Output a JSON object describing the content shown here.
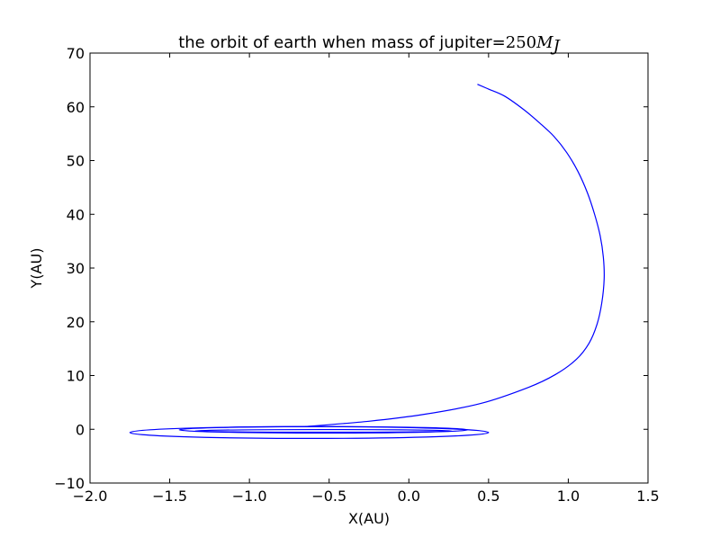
{
  "chart_data": {
    "type": "line",
    "title": "the orbit of earth when mass of jupiter=",
    "title_math": "250",
    "title_math_var": "M",
    "title_math_sub": "J",
    "xlabel": "X(AU)",
    "ylabel": "Y(AU)",
    "xlim": [
      -2.0,
      1.5
    ],
    "ylim": [
      -10,
      70
    ],
    "xticks": [
      -2.0,
      -1.5,
      -1.0,
      -0.5,
      0.0,
      0.5,
      1.0,
      1.5
    ],
    "xtick_labels": [
      "−2.0",
      "−1.5",
      "−1.0",
      "−0.5",
      "0.0",
      "0.5",
      "1.0",
      "1.5"
    ],
    "yticks": [
      -10,
      0,
      10,
      20,
      30,
      40,
      50,
      60,
      70
    ],
    "ytick_labels": [
      "−10",
      "0",
      "10",
      "20",
      "30",
      "40",
      "50",
      "60",
      "70"
    ],
    "grid": false,
    "line_color": "#0000ff",
    "series": [
      {
        "x": [
          -0.65,
          -0.25,
          0.1,
          0.45,
          0.75,
          0.92,
          1.05,
          1.13,
          1.18,
          1.21,
          1.225,
          1.22,
          1.2,
          1.165,
          1.12,
          1.06,
          0.99,
          0.91,
          0.82,
          0.72,
          0.6,
          0.5,
          0.43
        ],
        "y": [
          0.5,
          1.5,
          2.8,
          4.8,
          7.8,
          10.2,
          13.0,
          16.0,
          19.5,
          23.5,
          28.0,
          32.0,
          36.0,
          40.0,
          44.0,
          48.0,
          51.5,
          54.5,
          57.0,
          59.5,
          62.0,
          63.3,
          64.2
        ]
      }
    ],
    "ellipses": [
      {
        "cx": -0.625,
        "cy": -0.6,
        "rx": 1.125,
        "ry": 1.1
      },
      {
        "cx": -0.535,
        "cy": -0.1,
        "rx": 0.905,
        "ry": 0.6
      },
      {
        "cx": -0.535,
        "cy": -0.3,
        "rx": 0.805,
        "ry": 0.25
      }
    ]
  }
}
